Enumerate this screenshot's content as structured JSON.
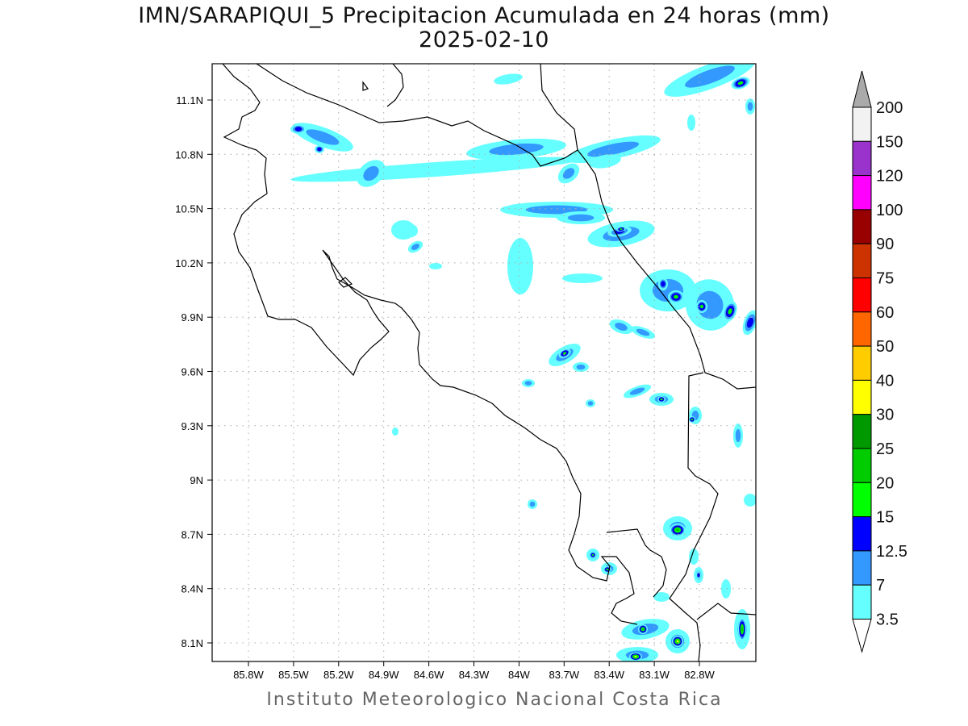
{
  "title": "IMN/SARAPIQUI_5 Precipitacion Acumulada en 24 horas (mm)",
  "subtitle": "2025-02-10",
  "footer": "Instituto Meteorologico Nacional Costa Rica",
  "map": {
    "lon_ticks": [
      "85.8W",
      "85.5W",
      "85.2W",
      "84.9W",
      "84.6W",
      "84.3W",
      "84W",
      "83.7W",
      "83.4W",
      "83.1W",
      "82.8W"
    ],
    "lat_ticks": [
      "11.1N",
      "10.8N",
      "10.5N",
      "10.2N",
      "9.9N",
      "9.6N",
      "9.3N",
      "9N",
      "8.7N",
      "8.4N",
      "8.1N"
    ],
    "units": "mm"
  },
  "colorbar": {
    "labels": [
      "200",
      "150",
      "120",
      "100",
      "90",
      "75",
      "60",
      "50",
      "40",
      "30",
      "25",
      "20",
      "15",
      "12.5",
      "7",
      "3.5"
    ],
    "colors": [
      "#f2f2f2",
      "#9933cc",
      "#ff00ff",
      "#990000",
      "#cc3300",
      "#ff0000",
      "#ff6600",
      "#ffcc00",
      "#ffff00",
      "#009900",
      "#00cc00",
      "#00ff00",
      "#0000ff",
      "#3399ff",
      "#66ffff"
    ],
    "over_color": "#aaaaaa",
    "under_color": "#ffffff"
  }
}
